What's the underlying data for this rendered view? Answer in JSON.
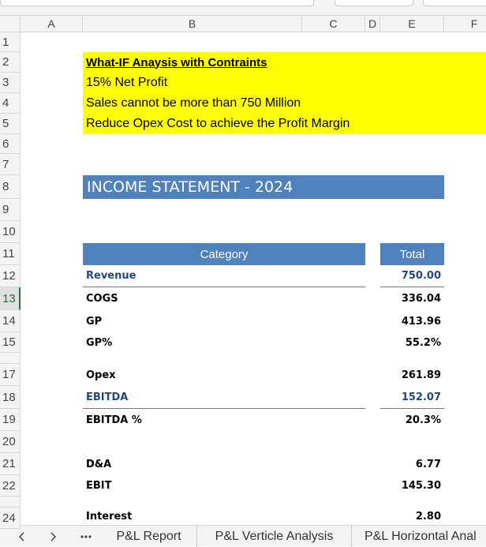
{
  "columns": [
    "A",
    "B",
    "C",
    "D",
    "E",
    "F"
  ],
  "rows": [
    "1",
    "2",
    "3",
    "4",
    "5",
    "6",
    "7",
    "8",
    "9",
    "10",
    "11",
    "12",
    "13",
    "14",
    "15",
    "17",
    "18",
    "19",
    "20",
    "21",
    "22",
    "24"
  ],
  "notes": {
    "title": "What-IF Anaysis with Contraints",
    "lines": [
      "15% Net Profit",
      "Sales cannot be more than 750 Million",
      "Reduce Opex Cost to achieve the Profit Margin"
    ]
  },
  "statement_title": "INCOME STATEMENT - 2024",
  "table": {
    "header": [
      "Category",
      "Total"
    ],
    "rows": [
      [
        "Revenue",
        "750.00"
      ],
      [
        "COGS",
        "336.04"
      ],
      [
        "GP",
        "413.96"
      ],
      [
        "GP%",
        "55.2%"
      ],
      [
        "Opex",
        "261.89"
      ],
      [
        "EBITDA",
        "152.07"
      ],
      [
        "EBITDA %",
        "20.3%"
      ],
      [
        "D&A",
        "6.77"
      ],
      [
        "EBIT",
        "145.30"
      ],
      [
        "Interest",
        "2.80"
      ]
    ]
  },
  "tabs": [
    "P&L Report",
    "P&L Verticle Analysis",
    "P&L Horizontal Anal"
  ]
}
